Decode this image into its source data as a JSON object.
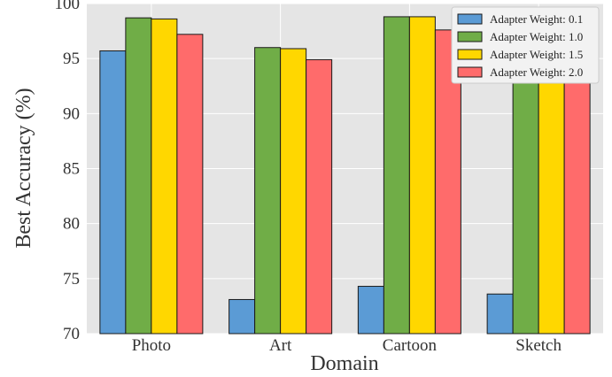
{
  "chart_data": {
    "type": "bar",
    "title": "",
    "xlabel": "Domain",
    "ylabel": "Best Accuracy (%)",
    "categories": [
      "Photo",
      "Art",
      "Cartoon",
      "Sketch"
    ],
    "ylim": [
      70,
      100
    ],
    "yticks": [
      70,
      75,
      80,
      85,
      90,
      95,
      100
    ],
    "grid": true,
    "legend_position": "top-right",
    "series": [
      {
        "name": "Adapter Weight: 0.1",
        "color": "#5b9bd5",
        "values": [
          95.7,
          73.1,
          74.3,
          73.6
        ]
      },
      {
        "name": "Adapter Weight: 1.0",
        "color": "#70ad47",
        "values": [
          98.7,
          96.0,
          98.8,
          95.5
        ]
      },
      {
        "name": "Adapter Weight: 1.5",
        "color": "#ffd700",
        "values": [
          98.6,
          95.9,
          98.8,
          95.4
        ]
      },
      {
        "name": "Adapter Weight: 2.0",
        "color": "#ff6b6b",
        "values": [
          97.2,
          94.9,
          97.6,
          95.3
        ]
      }
    ]
  }
}
